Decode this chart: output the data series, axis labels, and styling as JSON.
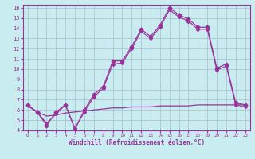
{
  "xlabel": "Windchill (Refroidissement éolien,°C)",
  "xlim": [
    -0.5,
    23.5
  ],
  "ylim": [
    4,
    16.3
  ],
  "yticks": [
    4,
    5,
    6,
    7,
    8,
    9,
    10,
    11,
    12,
    13,
    14,
    15,
    16
  ],
  "xticks": [
    0,
    1,
    2,
    3,
    4,
    5,
    6,
    7,
    8,
    9,
    10,
    11,
    12,
    13,
    14,
    15,
    16,
    17,
    18,
    19,
    20,
    21,
    22,
    23
  ],
  "bg_color": "#c8ecf0",
  "line_color": "#993399",
  "grid_color": "#aabbcc",
  "main_x": [
    0,
    1,
    2,
    3,
    4,
    5,
    6,
    7,
    8,
    9,
    10,
    11,
    12,
    13,
    14,
    15,
    16,
    17,
    18,
    19,
    20,
    21,
    22,
    23
  ],
  "main_y": [
    6.5,
    5.8,
    4.5,
    5.8,
    6.5,
    4.1,
    6.0,
    7.5,
    8.3,
    10.8,
    10.8,
    12.2,
    13.9,
    13.2,
    14.3,
    16.0,
    15.3,
    14.9,
    14.1,
    14.1,
    10.1,
    10.5,
    6.7,
    6.5
  ],
  "second_x": [
    0,
    1,
    2,
    3,
    4,
    5,
    6,
    7,
    8,
    9,
    10,
    11,
    12,
    13,
    14,
    15,
    16,
    17,
    18,
    19,
    20,
    21,
    22,
    23
  ],
  "second_y": [
    6.5,
    5.8,
    4.7,
    5.6,
    6.5,
    4.2,
    5.8,
    7.3,
    8.1,
    10.5,
    10.6,
    12.0,
    13.7,
    13.0,
    14.1,
    15.8,
    15.1,
    14.7,
    13.9,
    13.9,
    9.9,
    10.3,
    6.5,
    6.3
  ],
  "flat_x": [
    0,
    1,
    2,
    3,
    4,
    5,
    6,
    7,
    8,
    9,
    10,
    11,
    12,
    13,
    14,
    15,
    16,
    17,
    18,
    19,
    20,
    21,
    22,
    23
  ],
  "flat_y": [
    6.4,
    5.8,
    5.4,
    5.5,
    5.7,
    5.8,
    5.9,
    6.0,
    6.1,
    6.2,
    6.2,
    6.3,
    6.3,
    6.3,
    6.4,
    6.4,
    6.4,
    6.4,
    6.5,
    6.5,
    6.5,
    6.5,
    6.5,
    6.5
  ]
}
